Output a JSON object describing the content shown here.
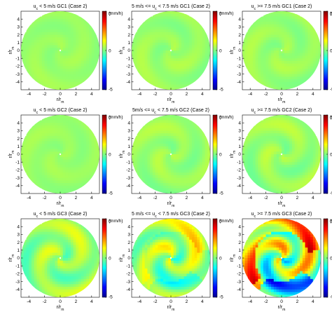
{
  "chart_data": [
    {
      "type": "heatmap",
      "title": "u_c < 5 m/s GC1 (Case 2)",
      "title_parts": [
        "u",
        "c",
        " < 5 m/s GC1 (Case 2)"
      ],
      "gc": "GC1",
      "speed_bin": "< 5 m/s",
      "intensity": 0.08,
      "colorbar_ticks": [
        "5",
        "0",
        "-5"
      ],
      "colorbar_unit": "(mm/h)",
      "xlabel_parts": [
        "r/r",
        "m"
      ],
      "ylabel_parts": [
        "r/r",
        "m"
      ]
    },
    {
      "type": "heatmap",
      "title": "5 m/s <= u_c < 7.5 m/s GC1 (Case 2)",
      "title_parts": [
        "5 m/s <= u",
        "c",
        " < 7.5 m/s GC1 (Case 2)"
      ],
      "gc": "GC1",
      "speed_bin": "5 m/s <= uc < 7.5 m/s",
      "intensity": 0.12,
      "colorbar_ticks": [
        "5",
        "0",
        "-5"
      ],
      "colorbar_unit": "(mm/h)",
      "xlabel_parts": [
        "r/r",
        "m"
      ],
      "ylabel_parts": [
        "r/r",
        "m"
      ]
    },
    {
      "type": "heatmap",
      "title": "u_c >= 7.5 m/s GC1 (Case 2)",
      "title_parts": [
        "u",
        "c",
        " >= 7.5 m/s GC1 (Case 2)"
      ],
      "gc": "GC1",
      "speed_bin": ">= 7.5 m/s",
      "intensity": 0.12,
      "colorbar_ticks": [
        "5",
        "0",
        "-5"
      ],
      "colorbar_unit": "(mm/h)",
      "xlabel_parts": [
        "r/r",
        "m"
      ],
      "ylabel_parts": [
        "r/r",
        "m"
      ]
    },
    {
      "type": "heatmap",
      "title": "u_c < 5 m/s GC2 (Case 2)",
      "title_parts": [
        "u",
        "c",
        " < 5 m/s GC2 (Case 2)"
      ],
      "gc": "GC2",
      "speed_bin": "< 5 m/s",
      "intensity": 0.08,
      "colorbar_ticks": [
        "5",
        "0",
        "-5"
      ],
      "colorbar_unit": "(mm/h)",
      "xlabel_parts": [
        "r/r",
        "m"
      ],
      "ylabel_parts": [
        "r/r",
        "m"
      ]
    },
    {
      "type": "heatmap",
      "title": "5m/s <= u_c < 7.5 m/s GC2 (Case 2)",
      "title_parts": [
        "5m/s <= u",
        "c",
        " < 7.5 m/s GC2 (Case 2)"
      ],
      "gc": "GC2",
      "speed_bin": "5 m/s <= uc < 7.5 m/s",
      "intensity": 0.15,
      "colorbar_ticks": [
        "5",
        "0",
        "-5"
      ],
      "colorbar_unit": "(mm/h)",
      "xlabel_parts": [
        "r/r",
        "m"
      ],
      "ylabel_parts": [
        "r/r",
        "m"
      ]
    },
    {
      "type": "heatmap",
      "title": "u_c >= 7.5 m/s GC2 (Case 2)",
      "title_parts": [
        "u",
        "c",
        " >= 7.5 m/s GC2 (Case 2)"
      ],
      "gc": "GC2",
      "speed_bin": ">= 7.5 m/s",
      "intensity": 0.18,
      "colorbar_ticks": [
        "5",
        "0",
        "-5"
      ],
      "colorbar_unit": "(mm/h)",
      "xlabel_parts": [
        "r/r",
        "m"
      ],
      "ylabel_parts": [
        "r/r",
        "m"
      ]
    },
    {
      "type": "heatmap",
      "title": "u_c < 5 m/s GC3 (Case 2)",
      "title_parts": [
        "u",
        "c",
        " < 5 m/s GC3 (Case 2)"
      ],
      "gc": "GC3",
      "speed_bin": "< 5 m/s",
      "intensity": 0.35,
      "colorbar_ticks": [
        "5",
        "0",
        "-5"
      ],
      "colorbar_unit": "(mm/h)",
      "xlabel_parts": [
        "r/r",
        "m"
      ],
      "ylabel_parts": [
        "r/r",
        "m"
      ]
    },
    {
      "type": "heatmap",
      "title": "5 m/s <= u_c < 7.5 m/s GC3 (Case 2)",
      "title_parts": [
        "5 m/s <= u",
        "c",
        " < 7.5 m/s GC3 (Case 2)"
      ],
      "gc": "GC3",
      "speed_bin": "5 m/s <= uc < 7.5 m/s",
      "intensity": 0.55,
      "colorbar_ticks": [
        "5",
        "0",
        "-5"
      ],
      "colorbar_unit": "(mm/h)",
      "xlabel_parts": [
        "r/r",
        "m"
      ],
      "ylabel_parts": [
        "r/r",
        "m"
      ]
    },
    {
      "type": "heatmap",
      "title": "u_c >= 7.5 m/s GC3 (Case 2)",
      "title_parts": [
        "u",
        "c",
        " >= 7.5 m/s GC3 (Case 2)"
      ],
      "gc": "GC3",
      "speed_bin": ">= 7.5 m/s",
      "intensity": 1.0,
      "colorbar_ticks": [
        "5",
        "0",
        "-5"
      ],
      "colorbar_unit": "(mm/h)",
      "xlabel_parts": [
        "r/r",
        "m"
      ],
      "ylabel_parts": [
        "r/r",
        "m"
      ]
    }
  ],
  "axes": {
    "x_ticks": [
      -4,
      -2,
      0,
      2,
      4
    ],
    "y_ticks": [
      -4,
      -3,
      -2,
      -1,
      0,
      1,
      2,
      3,
      4
    ],
    "xlim": [
      -5,
      5
    ],
    "ylim": [
      -5,
      5
    ],
    "clim": [
      -5,
      5
    ],
    "colormap": "jet",
    "grid": false
  },
  "colors": {
    "jet_stops": [
      "#00008f",
      "#0000ff",
      "#0080ff",
      "#00ffff",
      "#80ff80",
      "#ffff00",
      "#ff8000",
      "#ff0000",
      "#800000"
    ]
  }
}
